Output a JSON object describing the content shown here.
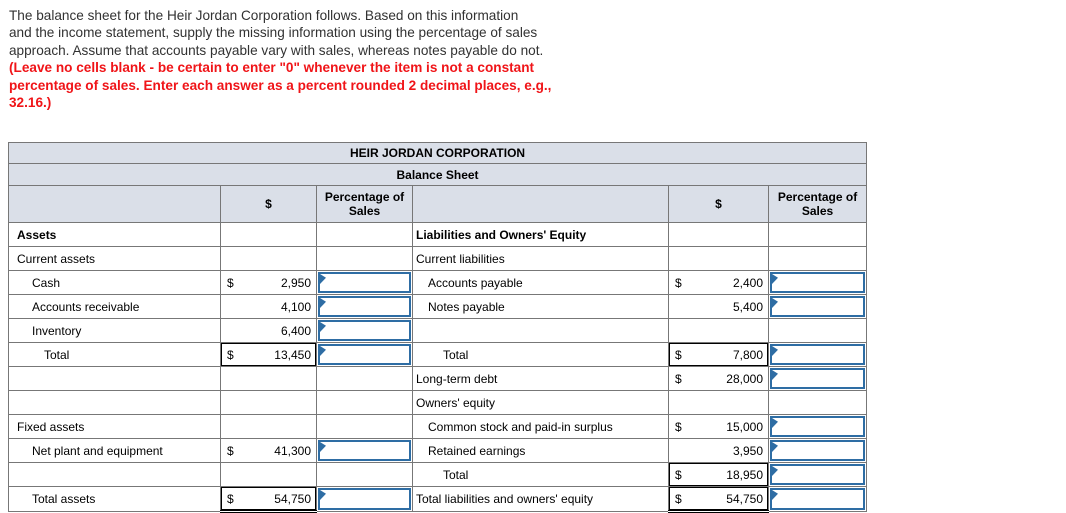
{
  "intro": {
    "black_lines": [
      "The balance sheet for the Heir Jordan Corporation follows. Based on this information",
      "and the income statement, supply the missing information using the percentage of sales",
      "approach. Assume that accounts payable vary with sales, whereas notes payable do not."
    ],
    "red_lines": [
      "(Leave no cells blank - be certain to enter \"0\" whenever the item is not a constant",
      "percentage of sales. Enter each answer as a percent rounded 2 decimal places, e.g.,",
      "32.16.)"
    ]
  },
  "table": {
    "title": "HEIR JORDAN CORPORATION",
    "subtitle": "Balance Sheet",
    "header": {
      "dollar": "$",
      "pct": "Percentage of Sales"
    },
    "rows": [
      {
        "left": {
          "label": "Assets",
          "bold": true,
          "indent": 0
        },
        "right": {
          "label": "Liabilities and Owners' Equity",
          "bold": true,
          "indent": 0
        }
      },
      {
        "left": {
          "label": "Current assets",
          "indent": 0
        },
        "right": {
          "label": "Current liabilities",
          "indent": 0
        }
      },
      {
        "left": {
          "label": "Cash",
          "indent": 1,
          "dollar": "$",
          "value": "2,950",
          "input": true
        },
        "right": {
          "label": "Accounts payable",
          "indent": 1,
          "dollar": "$",
          "value": "2,400",
          "input": true
        }
      },
      {
        "left": {
          "label": "Accounts receivable",
          "indent": 1,
          "value": "4,100",
          "input": true
        },
        "right": {
          "label": "Notes payable",
          "indent": 1,
          "value": "5,400",
          "input": true
        }
      },
      {
        "left": {
          "label": "Inventory",
          "indent": 1,
          "value": "6,400",
          "input": true
        },
        "right": {}
      },
      {
        "left": {
          "label": "Total",
          "indent": 2,
          "dollar": "$",
          "value": "13,450",
          "input": true,
          "box": "total"
        },
        "right": {
          "label": "Total",
          "indent": 2,
          "dollar": "$",
          "value": "7,800",
          "input": true,
          "box": "total"
        }
      },
      {
        "left": {},
        "right": {
          "label": "Long-term debt",
          "indent": 0,
          "dollar": "$",
          "value": "28,000",
          "input": true
        }
      },
      {
        "left": {},
        "right": {
          "label": "Owners' equity",
          "indent": 0
        }
      },
      {
        "left": {
          "label": "Fixed assets",
          "indent": 0
        },
        "right": {
          "label": "Common stock and paid-in surplus",
          "indent": 1,
          "dollar": "$",
          "value": "15,000",
          "input": true
        }
      },
      {
        "left": {
          "label": "Net plant and equipment",
          "indent": 1,
          "dollar": "$",
          "value": "41,300",
          "input": true
        },
        "right": {
          "label": "Retained earnings",
          "indent": 1,
          "value": "3,950",
          "input": true
        }
      },
      {
        "left": {},
        "right": {
          "label": "Total",
          "indent": 2,
          "dollar": "$",
          "value": "18,950",
          "input": true,
          "box": "total"
        }
      },
      {
        "left": {
          "label": "Total assets",
          "indent": 1,
          "dollar": "$",
          "value": "54,750",
          "input": true,
          "box": "grand"
        },
        "right": {
          "label": "Total liabilities and owners' equity",
          "indent": 0,
          "dollar": "$",
          "value": "54,750",
          "input": true,
          "box": "grand"
        }
      }
    ]
  },
  "colors": {
    "header_bg": "#dadfe8",
    "grid_line": "#777777",
    "total_border": "#000000",
    "input_border": "#2e6da4",
    "red_text": "#f01418",
    "body_text": "#323232"
  }
}
